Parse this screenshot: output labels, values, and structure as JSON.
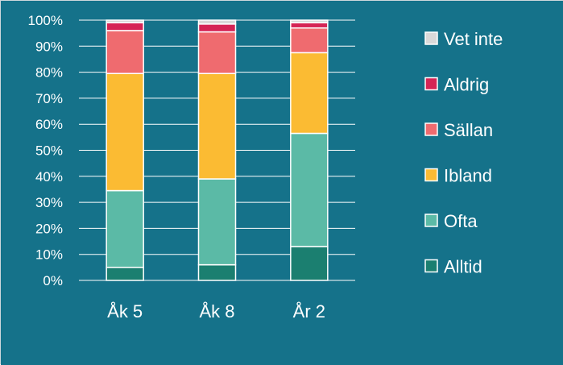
{
  "chart_data": {
    "type": "bar",
    "stacked": true,
    "percent_axis": true,
    "categories": [
      "Åk 5",
      "Åk 8",
      "År 2"
    ],
    "series": [
      {
        "name": "Alltid",
        "color": "#1b7f70",
        "values": [
          5,
          6,
          13
        ]
      },
      {
        "name": "Ofta",
        "color": "#5bbaa6",
        "values": [
          29.5,
          33,
          43.5
        ]
      },
      {
        "name": "Ibland",
        "color": "#fbbb33",
        "values": [
          45,
          40.5,
          31
        ]
      },
      {
        "name": "Sällan",
        "color": "#ef6b6f",
        "values": [
          16.5,
          16,
          9.5
        ]
      },
      {
        "name": "Aldrig",
        "color": "#d52455",
        "values": [
          3,
          3,
          2
        ]
      },
      {
        "name": "Vet inte",
        "color": "#d9d9d9",
        "values": [
          1,
          1.5,
          1
        ]
      }
    ],
    "ylim": [
      0,
      100
    ],
    "yticks": [
      "0%",
      "10%",
      "20%",
      "30%",
      "40%",
      "50%",
      "60%",
      "70%",
      "80%",
      "90%",
      "100%"
    ],
    "grid": true,
    "legend_position": "right",
    "legend_order": [
      "Vet inte",
      "Aldrig",
      "Sällan",
      "Ibland",
      "Ofta",
      "Alltid"
    ],
    "colors": {
      "background": "#15728a",
      "gridline": "#ffffff",
      "bar_outline": "#ffffff",
      "text": "#ffffff"
    },
    "title": "",
    "xlabel": "",
    "ylabel": ""
  }
}
